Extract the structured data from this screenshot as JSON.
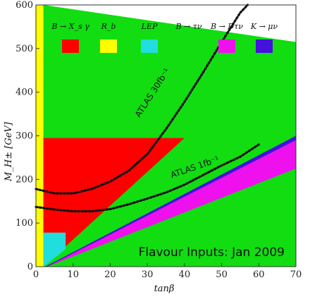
{
  "chart_data": {
    "type": "area",
    "title": "",
    "xlabel": "tanβ",
    "ylabel": "M_H± [GeV]",
    "xlim": [
      0,
      70
    ],
    "ylim": [
      0,
      600
    ],
    "x_ticks": [
      "0",
      "10",
      "20",
      "30",
      "40",
      "50",
      "60",
      "70"
    ],
    "y_ticks": [
      "0",
      "100",
      "200",
      "300",
      "400",
      "500",
      "600"
    ],
    "banner": "Flavour Inputs: Jan 2009",
    "legend": {
      "placement": "top",
      "entries": [
        {
          "label": "B → X_s γ",
          "color": "#ff0000"
        },
        {
          "label": "R_b",
          "color": "#ffff00"
        },
        {
          "label": "LEP",
          "color": "#22dddd"
        },
        {
          "label": "B → τν",
          "color": "#11dd11"
        },
        {
          "label": "B → Dτν",
          "color": "#ee11ee"
        },
        {
          "label": "K → μν",
          "color": "#4411dd"
        }
      ]
    },
    "regions": [
      {
        "name": "B → τν",
        "color": "#11dd11",
        "points": [
          [
            2,
            0
          ],
          [
            70,
            0
          ],
          [
            70,
            515
          ],
          [
            2,
            600
          ]
        ]
      },
      {
        "name": "B → X_s γ",
        "color": "#ff0000",
        "points": [
          [
            2,
            295
          ],
          [
            40,
            295
          ],
          [
            2,
            0
          ]
        ]
      },
      {
        "name": "B → Dτν",
        "color": "#ee11ee",
        "points": [
          [
            3,
            0
          ],
          [
            70,
            290
          ],
          [
            70,
            225
          ]
        ]
      },
      {
        "name": "K → μν",
        "color": "#4411dd",
        "points": [
          [
            2.5,
            0
          ],
          [
            70,
            300
          ],
          [
            70,
            290
          ],
          [
            3,
            0
          ]
        ]
      },
      {
        "name": "LEP",
        "color": "#22dddd",
        "points": [
          [
            2,
            0
          ],
          [
            2,
            78
          ],
          [
            8,
            78
          ],
          [
            8,
            40
          ]
        ]
      },
      {
        "name": "R_b",
        "color": "#ffff00",
        "points": [
          [
            0,
            0
          ],
          [
            2,
            0
          ],
          [
            2,
            600
          ],
          [
            0,
            600
          ]
        ]
      }
    ],
    "curves": [
      {
        "name": "ATLAS 30fb⁻¹",
        "points": [
          [
            0,
            178
          ],
          [
            5,
            168
          ],
          [
            10,
            168
          ],
          [
            15,
            178
          ],
          [
            20,
            195
          ],
          [
            25,
            220
          ],
          [
            30,
            258
          ],
          [
            35,
            315
          ],
          [
            40,
            378
          ],
          [
            45,
            445
          ],
          [
            50,
            515
          ],
          [
            55,
            582
          ],
          [
            57,
            605
          ]
        ]
      },
      {
        "name": "ATLAS 1fb⁻¹",
        "points": [
          [
            0,
            137
          ],
          [
            5,
            131
          ],
          [
            10,
            127
          ],
          [
            15,
            127
          ],
          [
            20,
            132
          ],
          [
            25,
            143
          ],
          [
            30,
            156
          ],
          [
            35,
            170
          ],
          [
            40,
            188
          ],
          [
            45,
            210
          ],
          [
            50,
            232
          ],
          [
            55,
            252
          ],
          [
            60,
            280
          ]
        ]
      }
    ]
  }
}
